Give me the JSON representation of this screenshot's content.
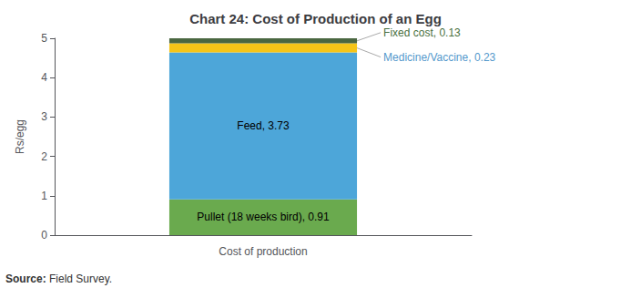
{
  "chart_data": {
    "type": "bar",
    "stacked": true,
    "title": "Chart 24: Cost of Production of an Egg",
    "xlabel": "Cost of production",
    "ylabel": "Rs/egg",
    "categories": [
      null
    ],
    "ylim": [
      0,
      5
    ],
    "yticks": [
      0,
      1,
      2,
      3,
      4,
      5
    ],
    "grid": false,
    "tick_labels": "y",
    "series": [
      {
        "color": "#6aaa4e",
        "values": [
          0.91
        ],
        "value_labels": [
          "Pullet (18 weeks bird), 0.91"
        ]
      },
      {
        "color": "#4da6d9",
        "values": [
          3.73
        ],
        "value_labels": [
          "Feed, 3.73"
        ]
      },
      {
        "color": "#f5c518",
        "values": [
          0.23
        ],
        "annotation": {
          "text": "Medicine/Vaccine, 0.23",
          "color": "#5599cc"
        }
      },
      {
        "color": "#4a6741",
        "values": [
          0.13
        ],
        "annotation": {
          "text": "Fixed cost, 0.13",
          "color": "#4a7040"
        }
      }
    ],
    "source_label": "Source:",
    "source": " Field Survey."
  }
}
